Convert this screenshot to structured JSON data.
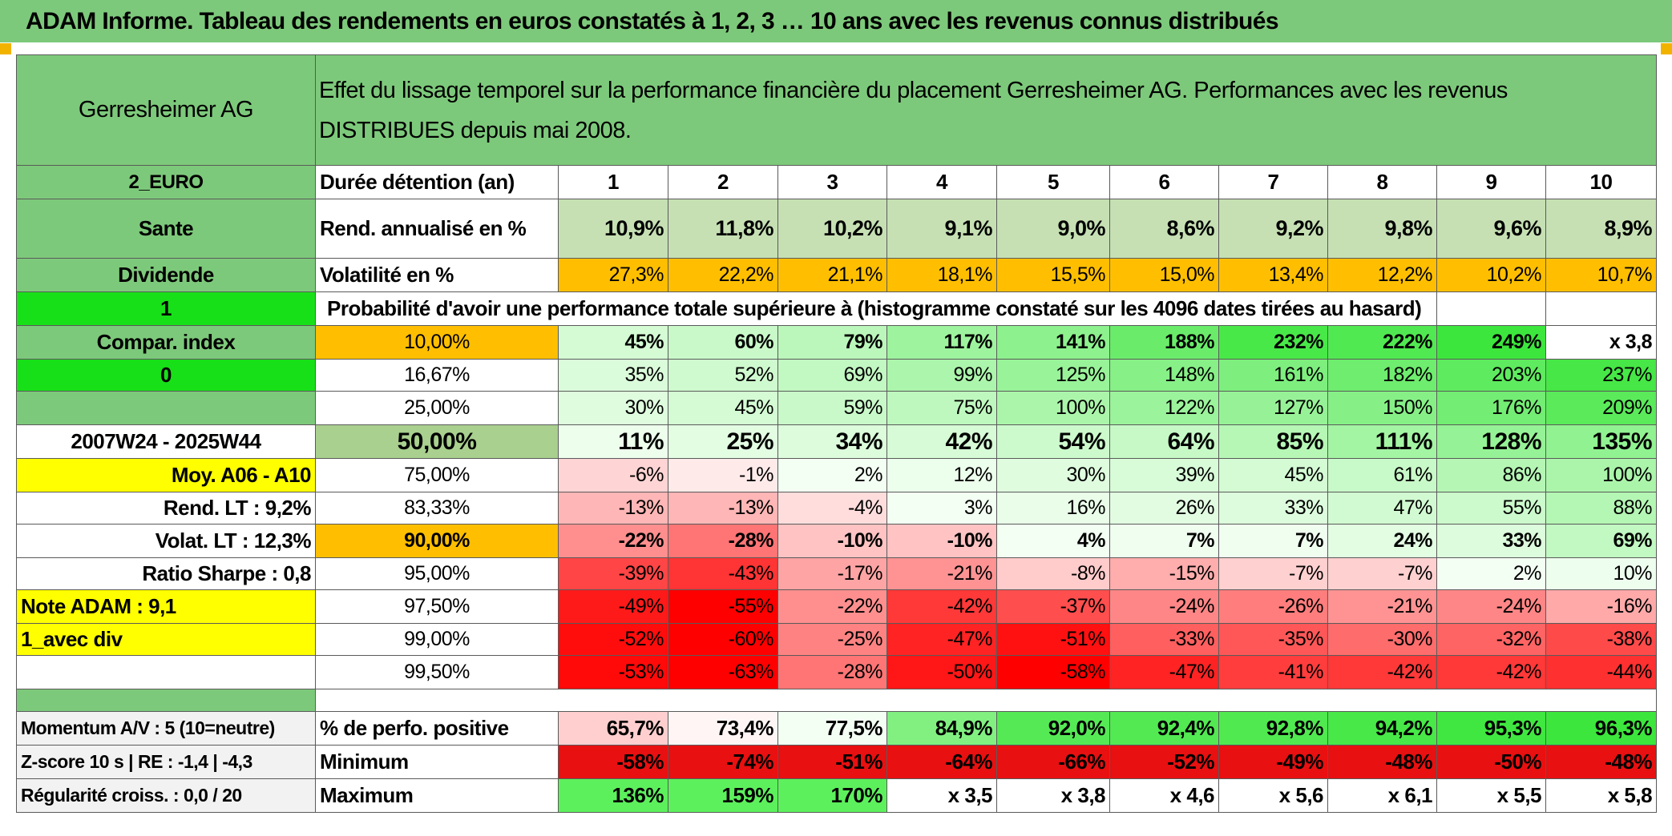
{
  "title": "ADAM Informe. Tableau des rendements en euros constatés à 1, 2, 3 … 10 ans avec les revenus connus distribués",
  "header": {
    "company": "Gerresheimer AG",
    "description_line1": "Effet du lissage temporel sur la performance financière du placement Gerresheimer AG. Performances avec les revenus",
    "description_line2": "DISTRIBUES depuis mai 2008."
  },
  "colors": {
    "title_green": "#7dc97b",
    "lime": "#18e018",
    "orange": "#ffbf00",
    "yellow": "#ffff00",
    "red_text": "#e0141a"
  },
  "left_labels": {
    "currency": "2_EURO",
    "sector": "Sante",
    "income": "Dividende",
    "flag1": "1",
    "compar": "Compar. index",
    "flag0": "0",
    "period": "2007W24 - 2025W44",
    "moy": "Moy. A06 - A10",
    "rend_lt": "Rend. LT :   9,2%",
    "volat_lt": "Volat. LT :   12,3%",
    "sharpe": "Ratio Sharpe :   0,8",
    "note": "Note ADAM : 9,1",
    "option": "1_avec div",
    "momentum": "Momentum A/V : 5 (10=neutre)",
    "zscore": "Z-score 10 s | RE : -1,4 | -4,3",
    "regularite": "Régularité croiss. : 0,0 / 20"
  },
  "duration": {
    "label": "Durée détention (an)",
    "years": [
      "1",
      "2",
      "3",
      "4",
      "5",
      "6",
      "7",
      "8",
      "9",
      "10"
    ]
  },
  "rend": {
    "label": "Rend. annualisé en %",
    "values": [
      "10,9%",
      "11,8%",
      "10,2%",
      "9,1%",
      "9,0%",
      "8,6%",
      "9,2%",
      "9,8%",
      "9,6%",
      "8,9%"
    ]
  },
  "vol": {
    "label": "Volatilité en %",
    "values": [
      "27,3%",
      "22,2%",
      "21,1%",
      "18,1%",
      "15,5%",
      "15,0%",
      "13,4%",
      "12,2%",
      "10,2%",
      "10,7%"
    ]
  },
  "prob_title": "Probabilité d'avoir une performance totale supérieure à (histogramme constaté sur les 4096 dates tirées au hasard)",
  "prob_rows": [
    {
      "p": "10,00%",
      "values": [
        "45%",
        "60%",
        "79%",
        "117%",
        "141%",
        "188%",
        "232%",
        "222%",
        "249%",
        "x 3,8"
      ]
    },
    {
      "p": "16,67%",
      "values": [
        "35%",
        "52%",
        "69%",
        "99%",
        "125%",
        "148%",
        "161%",
        "182%",
        "203%",
        "237%"
      ]
    },
    {
      "p": "25,00%",
      "values": [
        "30%",
        "45%",
        "59%",
        "75%",
        "100%",
        "122%",
        "127%",
        "150%",
        "176%",
        "209%"
      ]
    },
    {
      "p": "50,00%",
      "values": [
        "11%",
        "25%",
        "34%",
        "42%",
        "54%",
        "64%",
        "85%",
        "111%",
        "128%",
        "135%"
      ]
    },
    {
      "p": "75,00%",
      "values": [
        "-6%",
        "-1%",
        "2%",
        "12%",
        "30%",
        "39%",
        "45%",
        "61%",
        "86%",
        "100%"
      ]
    },
    {
      "p": "83,33%",
      "values": [
        "-13%",
        "-13%",
        "-4%",
        "3%",
        "16%",
        "26%",
        "33%",
        "47%",
        "55%",
        "88%"
      ]
    },
    {
      "p": "90,00%",
      "values": [
        "-22%",
        "-28%",
        "-10%",
        "-10%",
        "4%",
        "7%",
        "7%",
        "24%",
        "33%",
        "69%"
      ]
    },
    {
      "p": "95,00%",
      "values": [
        "-39%",
        "-43%",
        "-17%",
        "-21%",
        "-8%",
        "-15%",
        "-7%",
        "-7%",
        "2%",
        "10%"
      ]
    },
    {
      "p": "97,50%",
      "values": [
        "-49%",
        "-55%",
        "-22%",
        "-42%",
        "-37%",
        "-24%",
        "-26%",
        "-21%",
        "-24%",
        "-16%"
      ]
    },
    {
      "p": "99,00%",
      "values": [
        "-52%",
        "-60%",
        "-25%",
        "-47%",
        "-51%",
        "-33%",
        "-35%",
        "-30%",
        "-32%",
        "-38%"
      ]
    },
    {
      "p": "99,50%",
      "values": [
        "-53%",
        "-63%",
        "-28%",
        "-50%",
        "-58%",
        "-47%",
        "-41%",
        "-42%",
        "-42%",
        "-44%"
      ]
    }
  ],
  "stats": [
    {
      "label": "% de perfo. positive",
      "values": [
        "65,7%",
        "73,4%",
        "77,5%",
        "84,9%",
        "92,0%",
        "92,4%",
        "92,8%",
        "94,2%",
        "95,3%",
        "96,3%"
      ]
    },
    {
      "label": "Minimum",
      "values": [
        "-58%",
        "-74%",
        "-51%",
        "-64%",
        "-66%",
        "-52%",
        "-49%",
        "-48%",
        "-50%",
        "-48%"
      ]
    },
    {
      "label": "Maximum",
      "values": [
        "136%",
        "159%",
        "170%",
        "x 3,5",
        "x 3,8",
        "x 4,6",
        "x 5,6",
        "x 6,1",
        "x 5,5",
        "x 5,8"
      ]
    }
  ]
}
